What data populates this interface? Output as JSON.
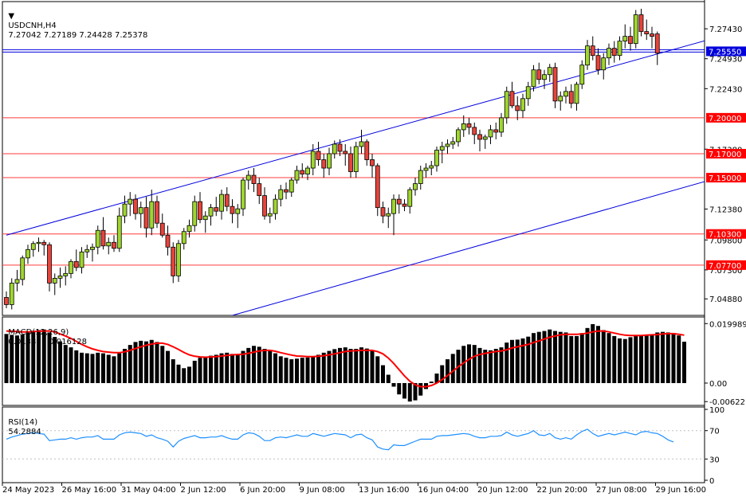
{
  "header": {
    "symbol": "USDCNH,H4",
    "ohlc": "7.27042 7.27189 7.24428 7.25378"
  },
  "macd_label": {
    "name": "MACD(12,26,9)",
    "values": "0.013881 0.016128"
  },
  "rsi_label": {
    "name": "RSI(14)",
    "value": "54.2884"
  },
  "colors": {
    "bull_body": "#9fd62e",
    "bear_body": "#e8433a",
    "wick": "#000000",
    "channel": "#0000dd",
    "level_line": "#ff3b3b",
    "level_tag": "#ff0000",
    "current_tag": "#0000dd",
    "macd_hist": "#000000",
    "macd_signal": "#ff0000",
    "rsi_line": "#1e90ff",
    "grid_dotted": "#c0c0c0"
  },
  "chart_data": [
    {
      "type": "candlestick",
      "panel": "price",
      "ylim": [
        7.035,
        7.297
      ],
      "y_ticks": [
        "7.27430",
        "7.24930",
        "7.22430",
        "7.17380",
        "7.12380",
        "7.09800",
        "7.07300",
        "7.04880"
      ],
      "horizontal_levels": [
        "7.20000",
        "7.17000",
        "7.15000",
        "7.10300",
        "7.07700"
      ],
      "current_price_line": "7.25550",
      "channel": {
        "upper": [
          {
            "x": 0,
            "y": 7.102
          },
          {
            "x": 152,
            "y": 7.292
          }
        ],
        "lower": [
          {
            "x": 42,
            "y": 7.035
          },
          {
            "x": 152,
            "y": 7.175
          }
        ]
      },
      "candles": [
        [
          7.05,
          7.055,
          7.041,
          7.044
        ],
        [
          7.044,
          7.066,
          7.04,
          7.062
        ],
        [
          7.062,
          7.073,
          7.055,
          7.065
        ],
        [
          7.065,
          7.085,
          7.06,
          7.083
        ],
        [
          7.083,
          7.094,
          7.078,
          7.09
        ],
        [
          7.09,
          7.097,
          7.084,
          7.095
        ],
        [
          7.095,
          7.1,
          7.088,
          7.096
        ],
        [
          7.096,
          7.098,
          7.085,
          7.094
        ],
        [
          7.094,
          7.096,
          7.055,
          7.062
        ],
        [
          7.062,
          7.07,
          7.052,
          7.066
        ],
        [
          7.066,
          7.075,
          7.058,
          7.068
        ],
        [
          7.068,
          7.076,
          7.06,
          7.07
        ],
        [
          7.07,
          7.082,
          7.066,
          7.08
        ],
        [
          7.08,
          7.09,
          7.072,
          7.075
        ],
        [
          7.075,
          7.092,
          7.07,
          7.088
        ],
        [
          7.088,
          7.094,
          7.083,
          7.09
        ],
        [
          7.09,
          7.095,
          7.08,
          7.092
        ],
        [
          7.092,
          7.11,
          7.086,
          7.106
        ],
        [
          7.106,
          7.117,
          7.09,
          7.093
        ],
        [
          7.093,
          7.1,
          7.086,
          7.096
        ],
        [
          7.096,
          7.102,
          7.088,
          7.091
        ],
        [
          7.091,
          7.125,
          7.088,
          7.118
        ],
        [
          7.118,
          7.135,
          7.112,
          7.128
        ],
        [
          7.128,
          7.138,
          7.118,
          7.132
        ],
        [
          7.132,
          7.136,
          7.115,
          7.12
        ],
        [
          7.12,
          7.13,
          7.108,
          7.125
        ],
        [
          7.125,
          7.134,
          7.1,
          7.108
        ],
        [
          7.108,
          7.14,
          7.102,
          7.13
        ],
        [
          7.13,
          7.135,
          7.108,
          7.112
        ],
        [
          7.112,
          7.12,
          7.1,
          7.102
        ],
        [
          7.102,
          7.11,
          7.085,
          7.092
        ],
        [
          7.092,
          7.096,
          7.062,
          7.068
        ],
        [
          7.068,
          7.098,
          7.063,
          7.095
        ],
        [
          7.095,
          7.108,
          7.09,
          7.105
        ],
        [
          7.105,
          7.115,
          7.1,
          7.11
        ],
        [
          7.11,
          7.135,
          7.105,
          7.13
        ],
        [
          7.13,
          7.138,
          7.112,
          7.115
        ],
        [
          7.115,
          7.122,
          7.104,
          7.118
        ],
        [
          7.118,
          7.128,
          7.11,
          7.125
        ],
        [
          7.125,
          7.134,
          7.118,
          7.122
        ],
        [
          7.122,
          7.14,
          7.115,
          7.136
        ],
        [
          7.136,
          7.142,
          7.122,
          7.126
        ],
        [
          7.126,
          7.132,
          7.112,
          7.12
        ],
        [
          7.12,
          7.128,
          7.108,
          7.124
        ],
        [
          7.124,
          7.15,
          7.118,
          7.148
        ],
        [
          7.148,
          7.156,
          7.14,
          7.152
        ],
        [
          7.152,
          7.158,
          7.138,
          7.145
        ],
        [
          7.145,
          7.15,
          7.128,
          7.135
        ],
        [
          7.135,
          7.142,
          7.115,
          7.118
        ],
        [
          7.118,
          7.125,
          7.112,
          7.12
        ],
        [
          7.12,
          7.136,
          7.115,
          7.132
        ],
        [
          7.132,
          7.144,
          7.126,
          7.14
        ],
        [
          7.14,
          7.146,
          7.132,
          7.138
        ],
        [
          7.138,
          7.15,
          7.134,
          7.148
        ],
        [
          7.148,
          7.16,
          7.145,
          7.156
        ],
        [
          7.156,
          7.162,
          7.15,
          7.153
        ],
        [
          7.153,
          7.16,
          7.148,
          7.158
        ],
        [
          7.158,
          7.178,
          7.152,
          7.172
        ],
        [
          7.172,
          7.18,
          7.16,
          7.165
        ],
        [
          7.165,
          7.17,
          7.15,
          7.158
        ],
        [
          7.158,
          7.175,
          7.152,
          7.17
        ],
        [
          7.17,
          7.181,
          7.166,
          7.178
        ],
        [
          7.178,
          7.182,
          7.168,
          7.172
        ],
        [
          7.172,
          7.178,
          7.16,
          7.17
        ],
        [
          7.17,
          7.176,
          7.15,
          7.155
        ],
        [
          7.155,
          7.18,
          7.15,
          7.176
        ],
        [
          7.176,
          7.19,
          7.17,
          7.18
        ],
        [
          7.18,
          7.182,
          7.16,
          7.165
        ],
        [
          7.165,
          7.17,
          7.15,
          7.16
        ],
        [
          7.16,
          7.162,
          7.118,
          7.125
        ],
        [
          7.125,
          7.13,
          7.112,
          7.118
        ],
        [
          7.118,
          7.125,
          7.108,
          7.12
        ],
        [
          7.12,
          7.136,
          7.102,
          7.132
        ],
        [
          7.132,
          7.136,
          7.12,
          7.128
        ],
        [
          7.128,
          7.132,
          7.122,
          7.126
        ],
        [
          7.126,
          7.142,
          7.12,
          7.14
        ],
        [
          7.14,
          7.15,
          7.135,
          7.145
        ],
        [
          7.145,
          7.16,
          7.14,
          7.156
        ],
        [
          7.156,
          7.162,
          7.15,
          7.158
        ],
        [
          7.158,
          7.164,
          7.152,
          7.16
        ],
        [
          7.16,
          7.176,
          7.155,
          7.173
        ],
        [
          7.173,
          7.18,
          7.162,
          7.176
        ],
        [
          7.176,
          7.182,
          7.17,
          7.178
        ],
        [
          7.178,
          7.184,
          7.174,
          7.18
        ],
        [
          7.18,
          7.192,
          7.176,
          7.19
        ],
        [
          7.19,
          7.202,
          7.184,
          7.195
        ],
        [
          7.195,
          7.2,
          7.186,
          7.192
        ],
        [
          7.192,
          7.196,
          7.178,
          7.186
        ],
        [
          7.186,
          7.19,
          7.172,
          7.182
        ],
        [
          7.182,
          7.186,
          7.174,
          7.184
        ],
        [
          7.184,
          7.194,
          7.178,
          7.19
        ],
        [
          7.19,
          7.196,
          7.182,
          7.188
        ],
        [
          7.188,
          7.204,
          7.184,
          7.2
        ],
        [
          7.2,
          7.226,
          7.195,
          7.222
        ],
        [
          7.222,
          7.23,
          7.208,
          7.21
        ],
        [
          7.21,
          7.218,
          7.198,
          7.206
        ],
        [
          7.206,
          7.22,
          7.2,
          7.216
        ],
        [
          7.216,
          7.23,
          7.21,
          7.226
        ],
        [
          7.226,
          7.244,
          7.222,
          7.24
        ],
        [
          7.24,
          7.246,
          7.228,
          7.232
        ],
        [
          7.232,
          7.24,
          7.224,
          7.236
        ],
        [
          7.236,
          7.245,
          7.23,
          7.242
        ],
        [
          7.242,
          7.246,
          7.208,
          7.214
        ],
        [
          7.214,
          7.222,
          7.206,
          7.218
        ],
        [
          7.218,
          7.226,
          7.212,
          7.222
        ],
        [
          7.222,
          7.228,
          7.208,
          7.212
        ],
        [
          7.212,
          7.23,
          7.206,
          7.228
        ],
        [
          7.228,
          7.248,
          7.224,
          7.244
        ],
        [
          7.244,
          7.265,
          7.24,
          7.26
        ],
        [
          7.26,
          7.268,
          7.248,
          7.252
        ],
        [
          7.252,
          7.258,
          7.236,
          7.24
        ],
        [
          7.24,
          7.254,
          7.232,
          7.25
        ],
        [
          7.25,
          7.262,
          7.244,
          7.258
        ],
        [
          7.258,
          7.264,
          7.246,
          7.252
        ],
        [
          7.252,
          7.268,
          7.248,
          7.264
        ],
        [
          7.264,
          7.278,
          7.258,
          7.268
        ],
        [
          7.268,
          7.276,
          7.256,
          7.262
        ],
        [
          7.262,
          7.29,
          7.258,
          7.286
        ],
        [
          7.286,
          7.291,
          7.268,
          7.272
        ],
        [
          7.272,
          7.282,
          7.265,
          7.27
        ],
        [
          7.27,
          7.276,
          7.258,
          7.268
        ],
        [
          7.27,
          7.272,
          7.244,
          7.254
        ]
      ]
    },
    {
      "type": "bar",
      "panel": "macd",
      "ylim": [
        -0.0075,
        0.0222
      ],
      "y_ticks": [
        "0.019989",
        "0.00",
        "-0.006221"
      ],
      "histogram": [
        0.0165,
        0.0162,
        0.016,
        0.0163,
        0.017,
        0.0175,
        0.0178,
        0.018,
        0.017,
        0.0155,
        0.014,
        0.0128,
        0.012,
        0.011,
        0.0102,
        0.01,
        0.0098,
        0.0102,
        0.01,
        0.0095,
        0.009,
        0.01,
        0.0115,
        0.0128,
        0.0138,
        0.0142,
        0.014,
        0.0145,
        0.0138,
        0.0125,
        0.0108,
        0.008,
        0.0062,
        0.005,
        0.0055,
        0.0075,
        0.0085,
        0.0088,
        0.0092,
        0.0095,
        0.01,
        0.0102,
        0.0098,
        0.0096,
        0.0108,
        0.0118,
        0.0125,
        0.0122,
        0.0115,
        0.0108,
        0.01,
        0.009,
        0.0085,
        0.008,
        0.0082,
        0.0085,
        0.0086,
        0.0088,
        0.0095,
        0.0102,
        0.0108,
        0.0114,
        0.0118,
        0.012,
        0.0115,
        0.0115,
        0.012,
        0.0116,
        0.011,
        0.009,
        0.006,
        0.0028,
        -0.0012,
        -0.0038,
        -0.0052,
        -0.0062,
        -0.0058,
        -0.0042,
        -0.002,
        0.0005,
        0.0032,
        0.006,
        0.008,
        0.0098,
        0.0112,
        0.0125,
        0.013,
        0.0128,
        0.0118,
        0.0112,
        0.011,
        0.0115,
        0.012,
        0.0136,
        0.0145,
        0.0146,
        0.015,
        0.0156,
        0.0168,
        0.0172,
        0.0175,
        0.018,
        0.0175,
        0.0172,
        0.017,
        0.0158,
        0.0158,
        0.0168,
        0.0185,
        0.0198,
        0.0192,
        0.0178,
        0.0168,
        0.0158,
        0.015,
        0.0148,
        0.0154,
        0.0158,
        0.016,
        0.0162,
        0.0164,
        0.017,
        0.0172,
        0.017,
        0.0168,
        0.016,
        0.0139
      ],
      "signal": [
        0.0175,
        0.0174,
        0.0173,
        0.0172,
        0.0172,
        0.0173,
        0.0174,
        0.0175,
        0.0175,
        0.0172,
        0.0165,
        0.0158,
        0.015,
        0.014,
        0.013,
        0.0122,
        0.0115,
        0.011,
        0.0106,
        0.0104,
        0.0102,
        0.0102,
        0.0105,
        0.011,
        0.0116,
        0.0122,
        0.0127,
        0.0131,
        0.0134,
        0.0134,
        0.013,
        0.0122,
        0.0113,
        0.0103,
        0.0095,
        0.009,
        0.0088,
        0.0087,
        0.0088,
        0.0089,
        0.0091,
        0.0093,
        0.0095,
        0.0096,
        0.0097,
        0.01,
        0.0104,
        0.0108,
        0.011,
        0.011,
        0.0107,
        0.0102,
        0.0098,
        0.0094,
        0.0091,
        0.009,
        0.0089,
        0.0089,
        0.009,
        0.0092,
        0.0095,
        0.0098,
        0.0102,
        0.0106,
        0.0108,
        0.0109,
        0.011,
        0.011,
        0.011,
        0.0106,
        0.0098,
        0.0084,
        0.0066,
        0.0045,
        0.0024,
        0.0006,
        -0.0006,
        -0.0012,
        -0.0012,
        -0.0008,
        0.0,
        0.0012,
        0.0025,
        0.004,
        0.0055,
        0.0068,
        0.008,
        0.009,
        0.0096,
        0.01,
        0.0103,
        0.0106,
        0.0108,
        0.0112,
        0.0118,
        0.0122,
        0.0126,
        0.013,
        0.0136,
        0.0142,
        0.0148,
        0.0154,
        0.0158,
        0.0162,
        0.0164,
        0.0164,
        0.0164,
        0.0165,
        0.0168,
        0.0172,
        0.0175,
        0.0175,
        0.0172,
        0.0168,
        0.0164,
        0.0161,
        0.016,
        0.016,
        0.016,
        0.0161,
        0.0162,
        0.0163,
        0.0165,
        0.0166,
        0.0166,
        0.0164,
        0.0161
      ]
    },
    {
      "type": "line",
      "panel": "rsi",
      "ylim": [
        0,
        100
      ],
      "y_ticks": [
        "100",
        "70",
        "30",
        "0"
      ],
      "reference_levels": [
        70,
        30
      ],
      "values": [
        58,
        61,
        63,
        65,
        66,
        67,
        66,
        65,
        56,
        57,
        58,
        58,
        60,
        58,
        60,
        61,
        61,
        63,
        58,
        58,
        58,
        64,
        67,
        68,
        67,
        66,
        62,
        64,
        60,
        58,
        55,
        47,
        55,
        59,
        61,
        63,
        60,
        60,
        61,
        61,
        63,
        60,
        58,
        58,
        64,
        67,
        66,
        62,
        56,
        56,
        60,
        61,
        60,
        62,
        64,
        62,
        62,
        66,
        64,
        62,
        64,
        66,
        65,
        64,
        60,
        64,
        65,
        60,
        57,
        47,
        44,
        43,
        50,
        49,
        49,
        52,
        55,
        58,
        58,
        58,
        62,
        63,
        63,
        64,
        65,
        66,
        65,
        62,
        60,
        60,
        62,
        62,
        63,
        68,
        64,
        62,
        64,
        66,
        70,
        64,
        63,
        66,
        60,
        58,
        60,
        58,
        64,
        69,
        72,
        66,
        62,
        64,
        66,
        64,
        66,
        68,
        66,
        64,
        68,
        69,
        67,
        66,
        62,
        57,
        54
      ]
    }
  ],
  "x_labels": [
    "24 May 2023",
    "26 May 16:00",
    "31 May 04:00",
    "2 Jun 12:00",
    "6 Jun 20:00",
    "9 Jun 08:00",
    "13 Jun 16:00",
    "16 Jun 04:00",
    "20 Jun 12:00",
    "22 Jun 20:00",
    "27 Jun 08:00",
    "29 Jun 16:00"
  ]
}
